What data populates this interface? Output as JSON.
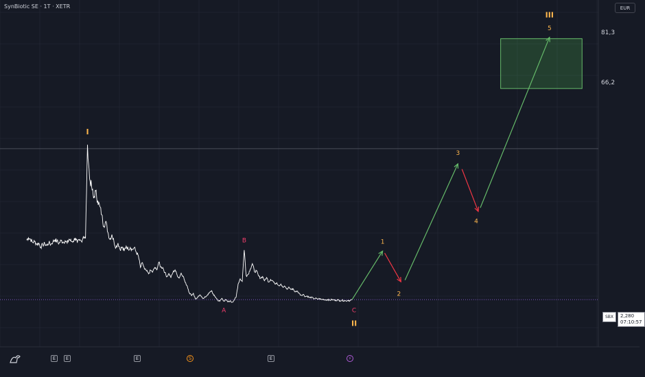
{
  "header": {
    "symbol": "SynBiotic SE · 1T · XETR",
    "currency": "EUR"
  },
  "price_axis": {
    "target_top": "81,3",
    "target_bottom": "66,2"
  },
  "last_price": {
    "ticker": "SBX",
    "price": "2,280",
    "countdown": "07:10:57"
  },
  "events": [
    {
      "id": "e1",
      "symbol": "E",
      "kind": "earnings"
    },
    {
      "id": "e2",
      "symbol": "E",
      "kind": "earnings"
    },
    {
      "id": "e3",
      "symbol": "E",
      "kind": "earnings"
    },
    {
      "id": "s1",
      "symbol": "S",
      "kind": "split"
    },
    {
      "id": "e4",
      "symbol": "E",
      "kind": "earnings"
    },
    {
      "id": "d1",
      "symbol": "⚡",
      "kind": "dividend"
    }
  ],
  "colors": {
    "background": "#161a25",
    "price_line": "#ffffff",
    "wave_label_gold": "#ffb74d",
    "wave_label_pink": "#f23e6c",
    "up_arrow": "#66bb6a",
    "down_arrow": "#f23645",
    "target_box": "#1b5e20",
    "current_price_line": "#7e57c2"
  },
  "chart_data": {
    "type": "line",
    "series": [
      {
        "values": [
          [
            0,
            20.3
          ],
          [
            1,
            21
          ],
          [
            2,
            20.6
          ],
          [
            3,
            19.6
          ],
          [
            4,
            19.9
          ],
          [
            5,
            19.1
          ],
          [
            6,
            19.4
          ],
          [
            7,
            18.2
          ],
          [
            8,
            18.9
          ],
          [
            9,
            19.2
          ],
          [
            10,
            18.7
          ],
          [
            11,
            19.5
          ],
          [
            12,
            19.0
          ],
          [
            13,
            19.8
          ],
          [
            14,
            20.4
          ],
          [
            15,
            20.0
          ],
          [
            16,
            19.3
          ],
          [
            17,
            20.2
          ],
          [
            18,
            19.7
          ],
          [
            19,
            20.1
          ],
          [
            20,
            19.4
          ],
          [
            21,
            20.6
          ],
          [
            22,
            19.9
          ],
          [
            23,
            20.0
          ],
          [
            24,
            21.0
          ],
          [
            25,
            19.5
          ],
          [
            26,
            20.2
          ],
          [
            27,
            20.0
          ],
          [
            28,
            21.5
          ],
          [
            29,
            20.8
          ],
          [
            30,
            49.2
          ],
          [
            31,
            39.0
          ],
          [
            32,
            36.5
          ],
          [
            33,
            33.0
          ],
          [
            34,
            35.2
          ],
          [
            35,
            32.1
          ],
          [
            36,
            30.6
          ],
          [
            37,
            28.0
          ],
          [
            38,
            24.5
          ],
          [
            39,
            26.0
          ],
          [
            40,
            22.7
          ],
          [
            41,
            20.5
          ],
          [
            42,
            22.0
          ],
          [
            43,
            19.8
          ],
          [
            44,
            18.1
          ],
          [
            45,
            19.4
          ],
          [
            46,
            17.5
          ],
          [
            47,
            18.2
          ],
          [
            48,
            17.0
          ],
          [
            49,
            18.5
          ],
          [
            50,
            17.6
          ],
          [
            51,
            18.1
          ],
          [
            52,
            17.4
          ],
          [
            53,
            18.0
          ],
          [
            54,
            16.6
          ],
          [
            55,
            15.5
          ],
          [
            56,
            12.0
          ],
          [
            57,
            13.5
          ],
          [
            58,
            11.5
          ],
          [
            59,
            11.0
          ],
          [
            60,
            10.1
          ],
          [
            61,
            11.2
          ],
          [
            62,
            10.6
          ],
          [
            63,
            12.0
          ],
          [
            64,
            11.3
          ],
          [
            65,
            13.6
          ],
          [
            66,
            12.1
          ],
          [
            67,
            12.0
          ],
          [
            68,
            10.5
          ],
          [
            69,
            9.2
          ],
          [
            70,
            10.2
          ],
          [
            71,
            9.0
          ],
          [
            72,
            10.6
          ],
          [
            73,
            11.3
          ],
          [
            74,
            9.8
          ],
          [
            75,
            8.8
          ],
          [
            76,
            10.3
          ],
          [
            77,
            9.4
          ],
          [
            78,
            7.5
          ],
          [
            79,
            6.4
          ],
          [
            80,
            4.4
          ],
          [
            81,
            3.6
          ],
          [
            82,
            4.2
          ],
          [
            83,
            2.5
          ],
          [
            84,
            2.8
          ],
          [
            85,
            3.6
          ],
          [
            86,
            3.3
          ],
          [
            87,
            2.6
          ],
          [
            88,
            3.1
          ],
          [
            89,
            3.8
          ],
          [
            90,
            4.4
          ],
          [
            91,
            5.0
          ],
          [
            92,
            3.6
          ],
          [
            93,
            3.0
          ],
          [
            94,
            2.1
          ],
          [
            95,
            1.8
          ],
          [
            96,
            2.7
          ],
          [
            97,
            1.9
          ],
          [
            98,
            2.2
          ],
          [
            99,
            1.6
          ],
          [
            100,
            1.9
          ],
          [
            101,
            1.5
          ],
          [
            102,
            2.1
          ],
          [
            103,
            3.0
          ],
          [
            104,
            7.0
          ],
          [
            105,
            8.6
          ],
          [
            106,
            7.8
          ],
          [
            107,
            17.3
          ],
          [
            108,
            9.5
          ],
          [
            109,
            10.0
          ],
          [
            110,
            11.6
          ],
          [
            111,
            13.2
          ],
          [
            112,
            10.8
          ],
          [
            113,
            11.0
          ],
          [
            114,
            9.5
          ],
          [
            115,
            8.8
          ],
          [
            116,
            9.3
          ],
          [
            117,
            8.0
          ],
          [
            118,
            9.0
          ],
          [
            119,
            7.6
          ],
          [
            120,
            8.4
          ],
          [
            121,
            8.0
          ],
          [
            122,
            7.1
          ],
          [
            123,
            7.4
          ],
          [
            124,
            6.5
          ],
          [
            125,
            7.0
          ],
          [
            126,
            6.0
          ],
          [
            127,
            6.3
          ],
          [
            128,
            5.4
          ],
          [
            129,
            6.1
          ],
          [
            130,
            5.3
          ],
          [
            131,
            5.6
          ],
          [
            132,
            4.6
          ],
          [
            133,
            4.9
          ],
          [
            134,
            4.2
          ],
          [
            135,
            3.6
          ],
          [
            136,
            3.9
          ],
          [
            137,
            3.2
          ],
          [
            138,
            3.4
          ],
          [
            139,
            2.9
          ],
          [
            140,
            3.0
          ],
          [
            141,
            2.6
          ],
          [
            142,
            2.7
          ],
          [
            143,
            2.4
          ],
          [
            144,
            2.6
          ],
          [
            145,
            2.3
          ],
          [
            146,
            2.4
          ],
          [
            147,
            2.2
          ],
          [
            148,
            2.3
          ],
          [
            149,
            2.1
          ],
          [
            150,
            2.3
          ],
          [
            151,
            2.2
          ],
          [
            152,
            2.1
          ],
          [
            153,
            2.2
          ],
          [
            154,
            2.0
          ],
          [
            155,
            2.1
          ],
          [
            156,
            2.0
          ],
          [
            157,
            1.9
          ],
          [
            158,
            2.1
          ],
          [
            159,
            2.0
          ],
          [
            160,
            2.3
          ]
        ]
      }
    ],
    "wave_labels": [
      {
        "label": "I",
        "x": 30,
        "y": 53.0,
        "color": "#ffb74d",
        "bold": true
      },
      {
        "label": "A",
        "x": 97,
        "y": -1.0,
        "color": "#f23e6c"
      },
      {
        "label": "B",
        "x": 107,
        "y": 20.2,
        "color": "#f23e6c"
      },
      {
        "label": "C",
        "x": 161,
        "y": -1.0,
        "color": "#f23e6c"
      },
      {
        "label": "II",
        "x": 161,
        "y": -5.0,
        "color": "#ffb74d",
        "bold": true
      },
      {
        "label": "1",
        "x": 175,
        "y": 19.8,
        "color": "#ffb74d"
      },
      {
        "label": "2",
        "x": 183,
        "y": 4.0,
        "color": "#ffb74d"
      },
      {
        "label": "3",
        "x": 212,
        "y": 46.6,
        "color": "#ffb74d"
      },
      {
        "label": "4",
        "x": 221,
        "y": 26.0,
        "color": "#ffb74d"
      },
      {
        "label": "III",
        "x": 257,
        "y": 88.3,
        "color": "#ffb74d",
        "bold": true
      },
      {
        "label": "5",
        "x": 257,
        "y": 84.4,
        "color": "#ffb74d"
      }
    ],
    "projection": [
      {
        "from": [
          160,
          2.3
        ],
        "to": [
          175,
          17.0
        ],
        "direction": "up"
      },
      {
        "from": [
          176,
          16.4
        ],
        "to": [
          184,
          7.7
        ],
        "direction": "down"
      },
      {
        "from": [
          186,
          8.2
        ],
        "to": [
          212,
          43.4
        ],
        "direction": "up"
      },
      {
        "from": [
          214,
          41.8
        ],
        "to": [
          222,
          29.0
        ],
        "direction": "down"
      },
      {
        "from": [
          223,
          30.1
        ],
        "to": [
          257,
          81.7
        ],
        "direction": "up"
      }
    ],
    "target_zone": {
      "x_range": [
        233,
        273
      ],
      "y_range": [
        66.2,
        81.3
      ]
    },
    "hlines": [
      {
        "y": 48.0,
        "color": "#4a4e59"
      },
      {
        "y": 2.28,
        "color": "#7e57c2",
        "dashed": true
      }
    ],
    "xlim": [
      -13,
      281
    ],
    "ylim": [
      -12,
      93
    ]
  }
}
